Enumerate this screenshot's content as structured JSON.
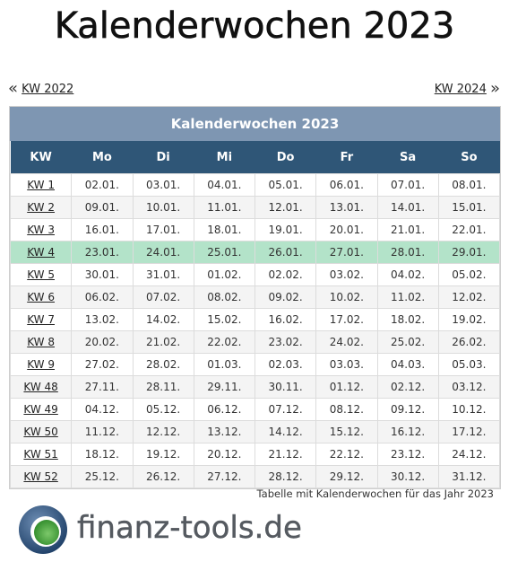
{
  "page": {
    "title": "Kalenderwochen 2023"
  },
  "nav": {
    "prev_arrow": "«",
    "prev_label": "KW 2022",
    "next_label": "KW 2024",
    "next_arrow": "»"
  },
  "table": {
    "caption": "Kalenderwochen 2023",
    "headers": [
      "KW",
      "Mo",
      "Di",
      "Mi",
      "Do",
      "Fr",
      "Sa",
      "So"
    ],
    "rows": [
      {
        "kw": "KW 1",
        "days": [
          "02.01.",
          "03.01.",
          "04.01.",
          "05.01.",
          "06.01.",
          "07.01.",
          "08.01."
        ]
      },
      {
        "kw": "KW 2",
        "days": [
          "09.01.",
          "10.01.",
          "11.01.",
          "12.01.",
          "13.01.",
          "14.01.",
          "15.01."
        ]
      },
      {
        "kw": "KW 3",
        "days": [
          "16.01.",
          "17.01.",
          "18.01.",
          "19.01.",
          "20.01.",
          "21.01.",
          "22.01."
        ]
      },
      {
        "kw": "KW 4",
        "days": [
          "23.01.",
          "24.01.",
          "25.01.",
          "26.01.",
          "27.01.",
          "28.01.",
          "29.01."
        ]
      },
      {
        "kw": "KW 5",
        "days": [
          "30.01.",
          "31.01.",
          "01.02.",
          "02.02.",
          "03.02.",
          "04.02.",
          "05.02."
        ]
      },
      {
        "kw": "KW 6",
        "days": [
          "06.02.",
          "07.02.",
          "08.02.",
          "09.02.",
          "10.02.",
          "11.02.",
          "12.02."
        ]
      },
      {
        "kw": "KW 7",
        "days": [
          "13.02.",
          "14.02.",
          "15.02.",
          "16.02.",
          "17.02.",
          "18.02.",
          "19.02."
        ]
      },
      {
        "kw": "KW 8",
        "days": [
          "20.02.",
          "21.02.",
          "22.02.",
          "23.02.",
          "24.02.",
          "25.02.",
          "26.02."
        ]
      },
      {
        "kw": "KW 9",
        "days": [
          "27.02.",
          "28.02.",
          "01.03.",
          "02.03.",
          "03.03.",
          "04.03.",
          "05.03."
        ]
      },
      {
        "kw": "KW 48",
        "days": [
          "27.11.",
          "28.11.",
          "29.11.",
          "30.11.",
          "01.12.",
          "02.12.",
          "03.12."
        ]
      },
      {
        "kw": "KW 49",
        "days": [
          "04.12.",
          "05.12.",
          "06.12.",
          "07.12.",
          "08.12.",
          "09.12.",
          "10.12."
        ]
      },
      {
        "kw": "KW 50",
        "days": [
          "11.12.",
          "12.12.",
          "13.12.",
          "14.12.",
          "15.12.",
          "16.12.",
          "17.12."
        ]
      },
      {
        "kw": "KW 51",
        "days": [
          "18.12.",
          "19.12.",
          "20.12.",
          "21.12.",
          "22.12.",
          "23.12.",
          "24.12."
        ]
      },
      {
        "kw": "KW 52",
        "days": [
          "25.12.",
          "26.12.",
          "27.12.",
          "28.12.",
          "29.12.",
          "30.12.",
          "31.12."
        ]
      }
    ],
    "current_week": "KW 4",
    "note": "Tabelle mit Kalenderwochen für das Jahr 2023"
  },
  "logo": {
    "text": "finanz-tools.de",
    "icon": "globe-icon"
  },
  "colors": {
    "caption_bg": "#7e96b2",
    "header_bg": "#2f5677",
    "current_row_bg": "#b3e3c9",
    "stripe_bg": "#f4f4f4"
  }
}
